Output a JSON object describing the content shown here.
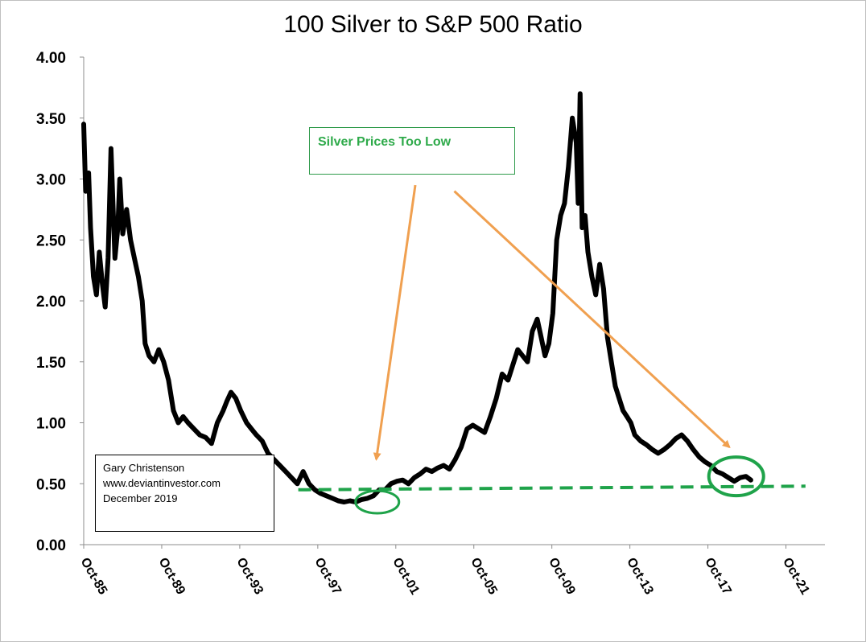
{
  "chart_data": {
    "type": "line",
    "title": "100 Silver to S&P 500 Ratio",
    "xlabel": "",
    "ylabel": "",
    "ylim": [
      0,
      4
    ],
    "yticks": [
      "0.00",
      "0.50",
      "1.00",
      "1.50",
      "2.00",
      "2.50",
      "3.00",
      "3.50",
      "4.00"
    ],
    "xlim": [
      1985.75,
      2023.75
    ],
    "xticks": [
      {
        "label": "Oct-85",
        "x": 1985.75
      },
      {
        "label": "Oct-89",
        "x": 1989.75
      },
      {
        "label": "Oct-93",
        "x": 1993.75
      },
      {
        "label": "Oct-97",
        "x": 1997.75
      },
      {
        "label": "Oct-01",
        "x": 2001.75
      },
      {
        "label": "Oct-05",
        "x": 2005.75
      },
      {
        "label": "Oct-09",
        "x": 2009.75
      },
      {
        "label": "Oct-13",
        "x": 2013.75
      },
      {
        "label": "Oct-17",
        "x": 2017.75
      },
      {
        "label": "Oct-21",
        "x": 2021.75
      }
    ],
    "grid": false,
    "legend": "none",
    "series": [
      {
        "color": "#000000",
        "x": [
          1985.75,
          1985.85,
          1986.0,
          1986.1,
          1986.25,
          1986.4,
          1986.55,
          1986.7,
          1986.85,
          1987.0,
          1987.15,
          1987.35,
          1987.5,
          1987.6,
          1987.75,
          1987.95,
          1988.15,
          1988.35,
          1988.55,
          1988.75,
          1988.9,
          1989.1,
          1989.35,
          1989.6,
          1989.85,
          1990.1,
          1990.35,
          1990.6,
          1990.85,
          1991.1,
          1991.4,
          1991.7,
          1992.0,
          1992.3,
          1992.6,
          1992.9,
          1993.1,
          1993.3,
          1993.55,
          1993.8,
          1994.1,
          1994.35,
          1994.6,
          1994.9,
          1995.2,
          1995.5,
          1995.8,
          1996.1,
          1996.4,
          1996.7,
          1997.0,
          1997.3,
          1997.6,
          1997.9,
          1998.2,
          1998.5,
          1998.8,
          1999.1,
          1999.4,
          1999.7,
          2000.0,
          2000.3,
          2000.6,
          2000.9,
          2001.2,
          2001.5,
          2001.8,
          2002.1,
          2002.4,
          2002.7,
          2003.0,
          2003.3,
          2003.6,
          2003.9,
          2004.2,
          2004.5,
          2004.8,
          2005.1,
          2005.4,
          2005.7,
          2006.0,
          2006.3,
          2006.6,
          2006.9,
          2007.2,
          2007.5,
          2007.8,
          2008.0,
          2008.25,
          2008.5,
          2008.75,
          2009.0,
          2009.2,
          2009.4,
          2009.6,
          2009.8,
          2010.0,
          2010.2,
          2010.4,
          2010.6,
          2010.8,
          2011.0,
          2011.1,
          2011.2,
          2011.3,
          2011.45,
          2011.6,
          2011.8,
          2012.0,
          2012.2,
          2012.4,
          2012.6,
          2012.8,
          2013.0,
          2013.2,
          2013.4,
          2013.6,
          2013.8,
          2014.0,
          2014.3,
          2014.6,
          2014.9,
          2015.2,
          2015.5,
          2015.8,
          2016.1,
          2016.4,
          2016.7,
          2017.0,
          2017.3,
          2017.6,
          2017.9,
          2018.2,
          2018.5,
          2018.8,
          2019.1,
          2019.4,
          2019.7,
          2019.95
        ],
        "y": [
          3.45,
          2.9,
          3.05,
          2.6,
          2.2,
          2.05,
          2.4,
          2.15,
          1.95,
          2.35,
          3.25,
          2.35,
          2.6,
          3.0,
          2.55,
          2.75,
          2.5,
          2.35,
          2.2,
          2.0,
          1.65,
          1.55,
          1.5,
          1.6,
          1.5,
          1.35,
          1.1,
          1.0,
          1.05,
          1.0,
          0.95,
          0.9,
          0.88,
          0.83,
          1.0,
          1.1,
          1.18,
          1.25,
          1.2,
          1.1,
          1.0,
          0.95,
          0.9,
          0.85,
          0.75,
          0.7,
          0.65,
          0.6,
          0.55,
          0.5,
          0.6,
          0.5,
          0.45,
          0.42,
          0.4,
          0.38,
          0.36,
          0.35,
          0.36,
          0.35,
          0.37,
          0.38,
          0.4,
          0.45,
          0.45,
          0.5,
          0.52,
          0.53,
          0.5,
          0.55,
          0.58,
          0.62,
          0.6,
          0.63,
          0.65,
          0.62,
          0.7,
          0.8,
          0.95,
          0.98,
          0.95,
          0.92,
          1.05,
          1.2,
          1.4,
          1.35,
          1.5,
          1.6,
          1.55,
          1.5,
          1.75,
          1.85,
          1.7,
          1.55,
          1.65,
          1.9,
          2.5,
          2.7,
          2.8,
          3.1,
          3.5,
          3.3,
          2.8,
          3.7,
          2.6,
          2.7,
          2.4,
          2.2,
          2.05,
          2.3,
          2.1,
          1.7,
          1.5,
          1.3,
          1.2,
          1.1,
          1.05,
          1.0,
          0.9,
          0.85,
          0.82,
          0.78,
          0.75,
          0.78,
          0.82,
          0.87,
          0.9,
          0.85,
          0.78,
          0.72,
          0.68,
          0.65,
          0.6,
          0.58,
          0.55,
          0.52,
          0.55,
          0.56,
          0.53
        ]
      },
      {
        "style": "dashed",
        "color": "#1fa34a",
        "x": [
          1996.75,
          2022.75
        ],
        "y": [
          0.45,
          0.48
        ]
      }
    ],
    "annotations": [
      {
        "text": "Silver Prices Too Low",
        "color": "#2eaa4a"
      },
      {
        "shape": "circle",
        "color": "#1fa34a",
        "cx": 2000.8,
        "cy": 0.35
      },
      {
        "shape": "circle",
        "color": "#1fa34a",
        "cx": 2019.2,
        "cy": 0.56
      },
      {
        "shape": "arrow",
        "color": "#f0a050",
        "from": [
          2002.75,
          2.95
        ],
        "to": [
          2000.75,
          0.7
        ]
      },
      {
        "shape": "arrow",
        "color": "#f0a050",
        "from": [
          2004.75,
          2.9
        ],
        "to": [
          2018.85,
          0.8
        ]
      }
    ]
  },
  "credit": {
    "name": "Gary Christenson",
    "website": "www.deviantinvestor.com",
    "date": "December 2019"
  }
}
